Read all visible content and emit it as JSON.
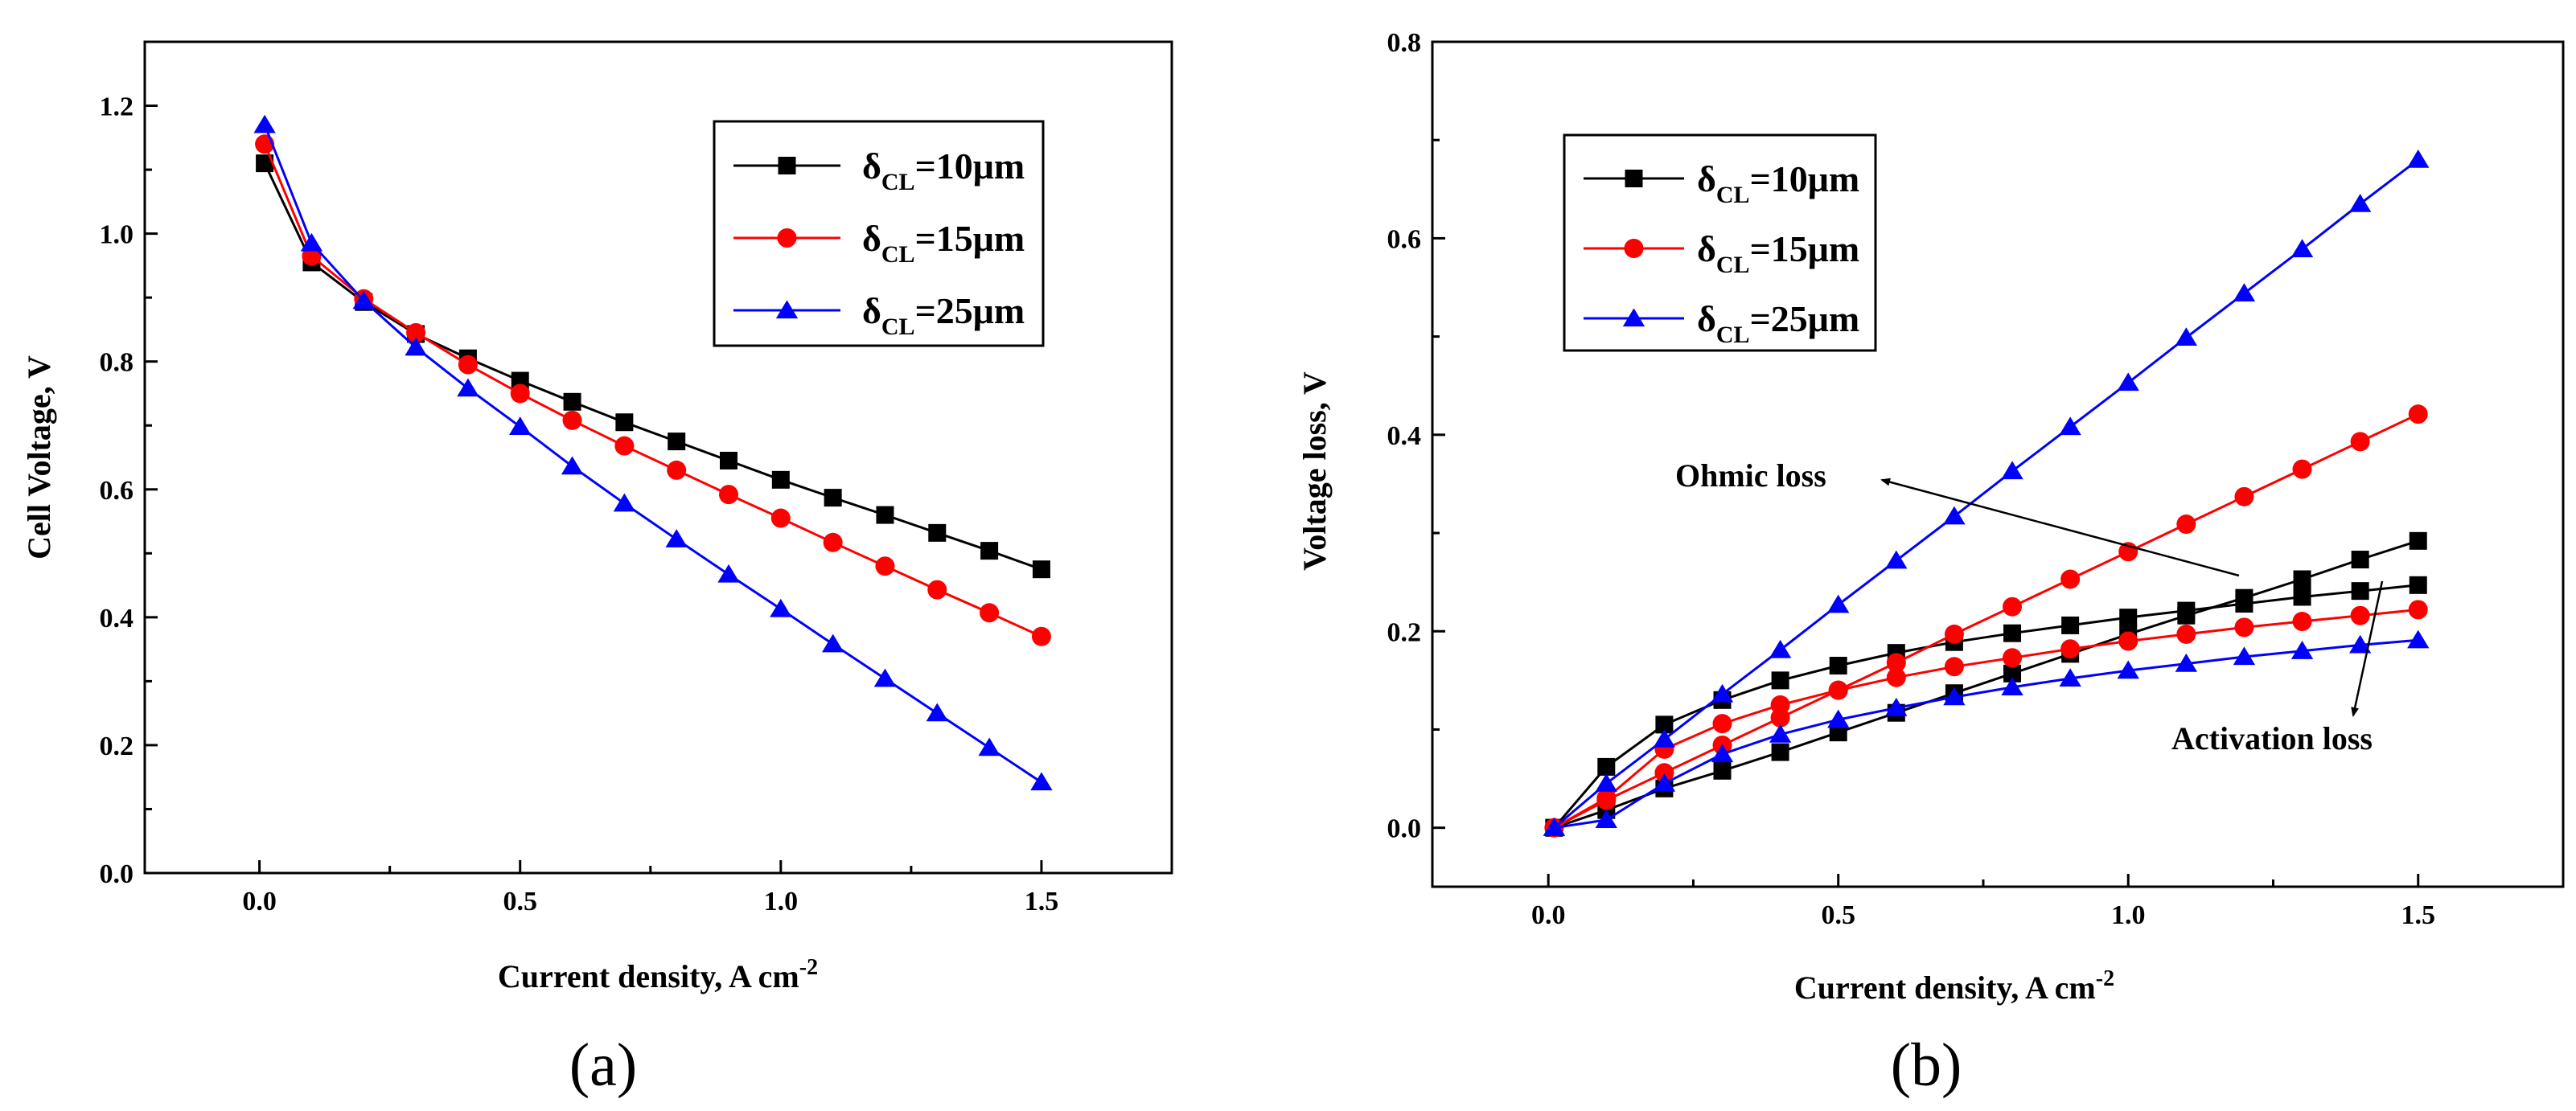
{
  "chart_data": [
    {
      "id": "a",
      "type": "line",
      "panel_label": "(a)",
      "xlabel": "Current density, A cm",
      "xlabel_sup": "-2",
      "ylabel": "Cell Voltage, V",
      "xlim": [
        -0.22,
        1.75
      ],
      "ylim": [
        0.0,
        1.3
      ],
      "xticks": [
        0.0,
        0.5,
        1.0,
        1.5
      ],
      "xtick_labels": [
        "0.0",
        "0.5",
        "1.0",
        "1.5"
      ],
      "yticks": [
        0.0,
        0.2,
        0.4,
        0.6,
        0.8,
        1.0,
        1.2
      ],
      "ytick_labels": [
        "0.0",
        "0.2",
        "0.4",
        "0.6",
        "0.8",
        "1.0",
        "1.2"
      ],
      "legend_position": "top-right",
      "x": [
        0.01,
        0.1,
        0.2,
        0.3,
        0.4,
        0.5,
        0.6,
        0.7,
        0.8,
        0.9,
        1.0,
        1.1,
        1.2,
        1.3,
        1.4,
        1.5
      ],
      "series": [
        {
          "name_main": "δ",
          "name_sub": "CL",
          "name_rest": "=10μm",
          "color": "#000000",
          "marker": "square",
          "values": [
            1.11,
            0.955,
            0.893,
            0.843,
            0.805,
            0.77,
            0.737,
            0.705,
            0.675,
            0.645,
            0.615,
            0.587,
            0.56,
            0.532,
            0.504,
            0.475
          ]
        },
        {
          "name_main": "δ",
          "name_sub": "CL",
          "name_rest": "=15μm",
          "color": "#ff0000",
          "marker": "circle",
          "values": [
            1.14,
            0.965,
            0.898,
            0.845,
            0.795,
            0.75,
            0.708,
            0.668,
            0.63,
            0.592,
            0.555,
            0.517,
            0.48,
            0.443,
            0.407,
            0.37
          ]
        },
        {
          "name_main": "δ",
          "name_sub": "CL",
          "name_rest": "=25μm",
          "color": "#0000ff",
          "marker": "triangle",
          "values": [
            1.17,
            0.985,
            0.895,
            0.822,
            0.758,
            0.698,
            0.636,
            0.578,
            0.522,
            0.467,
            0.413,
            0.358,
            0.304,
            0.25,
            0.196,
            0.142
          ]
        }
      ]
    },
    {
      "id": "b",
      "type": "line",
      "panel_label": "(b)",
      "xlabel": "Current density, A cm",
      "xlabel_sup": "-2",
      "ylabel": "Voltage loss, V",
      "xlim": [
        -0.2,
        1.75
      ],
      "ylim": [
        -0.06,
        0.8
      ],
      "xticks": [
        0.0,
        0.5,
        1.0,
        1.5
      ],
      "xtick_labels": [
        "0.0",
        "0.5",
        "1.0",
        "1.5"
      ],
      "yticks": [
        0.0,
        0.2,
        0.4,
        0.6,
        0.8
      ],
      "ytick_labels": [
        "0.0",
        "0.2",
        "0.4",
        "0.6",
        "0.8"
      ],
      "legend_position": "top-left",
      "annotations": [
        "Ohmic loss",
        "Activation loss"
      ],
      "x": [
        0.01,
        0.1,
        0.2,
        0.3,
        0.4,
        0.5,
        0.6,
        0.7,
        0.8,
        0.9,
        1.0,
        1.1,
        1.2,
        1.3,
        1.4,
        1.5
      ],
      "series": [
        {
          "name_main": "δ",
          "name_sub": "CL",
          "name_rest": "=10μm",
          "color": "#000000",
          "marker": "square",
          "kind": "ohmic",
          "values": [
            0.0,
            0.018,
            0.04,
            0.058,
            0.077,
            0.097,
            0.117,
            0.137,
            0.157,
            0.177,
            0.197,
            0.216,
            0.234,
            0.253,
            0.273,
            0.292
          ]
        },
        {
          "name_main": "δ",
          "name_sub": "CL",
          "name_rest": "=10μm",
          "color": "#000000",
          "marker": "square",
          "kind": "activation",
          "values": [
            0.0,
            0.062,
            0.105,
            0.13,
            0.15,
            0.165,
            0.178,
            0.189,
            0.198,
            0.206,
            0.214,
            0.221,
            0.228,
            0.235,
            0.241,
            0.247
          ]
        },
        {
          "name_main": "δ",
          "name_sub": "CL",
          "name_rest": "=15μm",
          "color": "#ff0000",
          "marker": "circle",
          "kind": "ohmic",
          "values": [
            0.0,
            0.028,
            0.056,
            0.084,
            0.112,
            0.14,
            0.168,
            0.197,
            0.225,
            0.253,
            0.281,
            0.309,
            0.337,
            0.365,
            0.393,
            0.421
          ]
        },
        {
          "name_main": "δ",
          "name_sub": "CL",
          "name_rest": "=15μm",
          "color": "#ff0000",
          "marker": "circle",
          "kind": "activation",
          "values": [
            0.0,
            0.03,
            0.08,
            0.106,
            0.125,
            0.14,
            0.153,
            0.164,
            0.173,
            0.182,
            0.19,
            0.197,
            0.204,
            0.21,
            0.216,
            0.222
          ]
        },
        {
          "name_main": "δ",
          "name_sub": "CL",
          "name_rest": "=25μm",
          "color": "#0000ff",
          "marker": "triangle",
          "kind": "ohmic",
          "values": [
            0.0,
            0.045,
            0.09,
            0.136,
            0.181,
            0.227,
            0.272,
            0.317,
            0.363,
            0.408,
            0.453,
            0.499,
            0.544,
            0.589,
            0.635,
            0.68
          ]
        },
        {
          "name_main": "δ",
          "name_sub": "CL",
          "name_rest": "=25μm",
          "color": "#0000ff",
          "marker": "triangle",
          "kind": "activation",
          "values": [
            0.0,
            0.008,
            0.045,
            0.075,
            0.095,
            0.11,
            0.122,
            0.133,
            0.143,
            0.152,
            0.16,
            0.167,
            0.174,
            0.18,
            0.186,
            0.191
          ]
        }
      ]
    }
  ]
}
